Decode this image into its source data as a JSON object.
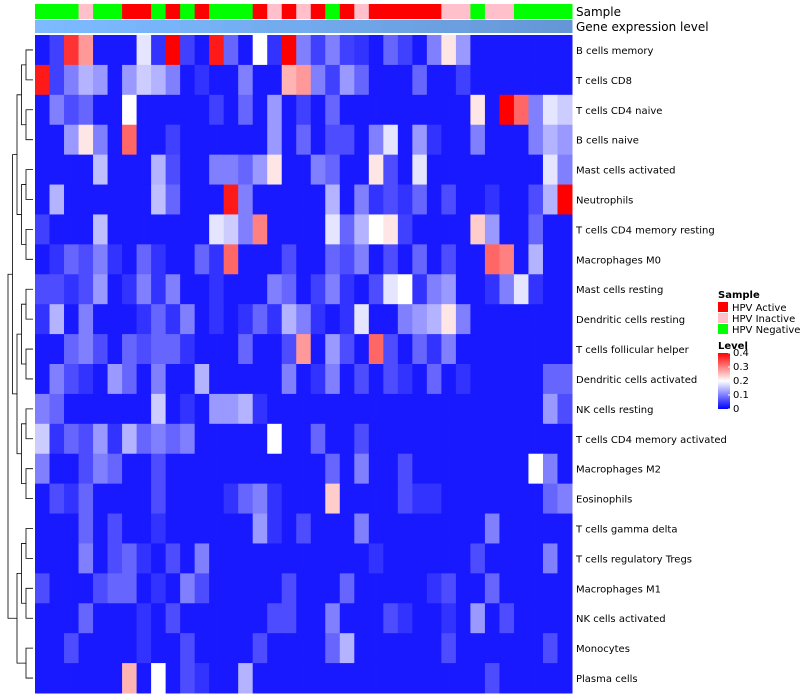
{
  "chart_data": {
    "type": "heatmap",
    "title": "",
    "annotation_tracks": [
      "Sample",
      "Gene expression level"
    ],
    "legends": [
      {
        "title": "Sample",
        "entries": [
          {
            "label": "HPV Active",
            "color": "#ff0000"
          },
          {
            "label": "HPV Inactive",
            "color": "#ffc0cb"
          },
          {
            "label": "HPV Negative",
            "color": "#00ff00"
          }
        ]
      },
      {
        "title": "Level",
        "ticks": [
          "0.4",
          "0.3",
          "0.2",
          "0.1",
          "0"
        ],
        "range": [
          0,
          0.4
        ],
        "gradient": [
          "#0000ff",
          "#ffffff",
          "#ff0000"
        ]
      }
    ],
    "sample_groups": [
      "neg",
      "neg",
      "neg",
      "ina",
      "neg",
      "neg",
      "act",
      "act",
      "neg",
      "act",
      "neg",
      "act",
      "neg",
      "neg",
      "neg",
      "act",
      "ina",
      "act",
      "ina",
      "act",
      "neg",
      "act",
      "ina",
      "act",
      "act",
      "act",
      "act",
      "act",
      "ina",
      "ina",
      "neg",
      "ina",
      "ina",
      "neg",
      "neg",
      "neg",
      "neg"
    ],
    "expression_level_track": [
      0.62,
      0.63,
      0.64,
      0.64,
      0.65,
      0.66,
      0.66,
      0.67,
      0.68,
      0.68,
      0.69,
      0.7,
      0.71,
      0.72,
      0.73,
      0.74,
      0.75,
      0.75,
      0.76,
      0.77,
      0.78,
      0.79,
      0.8,
      0.81,
      0.82,
      0.83,
      0.84,
      0.85,
      0.86,
      0.86,
      0.87,
      0.88,
      0.89,
      0.9,
      0.91,
      0.92,
      0.93
    ],
    "rows": [
      {
        "label": "B cells memory",
        "values": [
          0.02,
          0.05,
          0.36,
          0.28,
          0.02,
          0.02,
          0.02,
          0.18,
          0.04,
          0.4,
          0.05,
          0.02,
          0.38,
          0.08,
          0.02,
          0.2,
          0.04,
          0.4,
          0.1,
          0.05,
          0.1,
          0.05,
          0.04,
          0.02,
          0.08,
          0.05,
          0.02,
          0.1,
          0.22,
          0.12,
          0.02,
          0.02,
          0.02,
          0.02,
          0.02,
          0.02,
          0.02
        ]
      },
      {
        "label": "T cells CD8",
        "values": [
          0.38,
          0.05,
          0.1,
          0.14,
          0.12,
          0.02,
          0.12,
          0.16,
          0.14,
          0.1,
          0.02,
          0.04,
          0.02,
          0.02,
          0.1,
          0.02,
          0.02,
          0.26,
          0.28,
          0.1,
          0.05,
          0.12,
          0.08,
          0.02,
          0.02,
          0.02,
          0.08,
          0.02,
          0.02,
          0.05,
          0.02,
          0.02,
          0.02,
          0.02,
          0.02,
          0.02,
          0.02
        ]
      },
      {
        "label": "T cells CD4 naive",
        "values": [
          0.02,
          0.1,
          0.06,
          0.08,
          0.02,
          0.02,
          0.2,
          0.02,
          0.02,
          0.02,
          0.02,
          0.02,
          0.05,
          0.02,
          0.08,
          0.02,
          0.12,
          0.02,
          0.05,
          0.02,
          0.08,
          0.02,
          0.02,
          0.02,
          0.02,
          0.02,
          0.02,
          0.02,
          0.02,
          0.02,
          0.22,
          0.02,
          0.4,
          0.32,
          0.1,
          0.18,
          0.16
        ]
      },
      {
        "label": "B cells naive",
        "values": [
          0.02,
          0.02,
          0.12,
          0.22,
          0.1,
          0.02,
          0.32,
          0.02,
          0.02,
          0.05,
          0.02,
          0.02,
          0.02,
          0.02,
          0.02,
          0.02,
          0.12,
          0.02,
          0.08,
          0.02,
          0.06,
          0.06,
          0.02,
          0.1,
          0.18,
          0.02,
          0.12,
          0.04,
          0.02,
          0.02,
          0.1,
          0.02,
          0.02,
          0.02,
          0.1,
          0.14,
          0.12
        ]
      },
      {
        "label": "Mast cells activated",
        "values": [
          0.02,
          0.02,
          0.02,
          0.02,
          0.15,
          0.02,
          0.02,
          0.02,
          0.14,
          0.06,
          0.02,
          0.02,
          0.1,
          0.1,
          0.08,
          0.12,
          0.22,
          0.02,
          0.02,
          0.1,
          0.08,
          0.02,
          0.02,
          0.22,
          0.06,
          0.02,
          0.18,
          0.02,
          0.02,
          0.02,
          0.02,
          0.02,
          0.02,
          0.02,
          0.02,
          0.18,
          0.1
        ]
      },
      {
        "label": "Neutrophils",
        "values": [
          0.02,
          0.14,
          0.02,
          0.02,
          0.02,
          0.02,
          0.02,
          0.02,
          0.15,
          0.08,
          0.02,
          0.02,
          0.02,
          0.38,
          0.1,
          0.02,
          0.02,
          0.02,
          0.02,
          0.02,
          0.14,
          0.02,
          0.1,
          0.04,
          0.06,
          0.04,
          0.08,
          0.02,
          0.06,
          0.02,
          0.02,
          0.04,
          0.02,
          0.02,
          0.06,
          0.14,
          0.4
        ]
      },
      {
        "label": "T cells CD4 memory resting",
        "values": [
          0.05,
          0.02,
          0.02,
          0.02,
          0.15,
          0.02,
          0.02,
          0.02,
          0.02,
          0.02,
          0.02,
          0.02,
          0.18,
          0.16,
          0.1,
          0.3,
          0.02,
          0.02,
          0.02,
          0.02,
          0.18,
          0.08,
          0.14,
          0.2,
          0.22,
          0.05,
          0.02,
          0.02,
          0.02,
          0.02,
          0.24,
          0.12,
          0.02,
          0.02,
          0.08,
          0.02,
          0.02
        ]
      },
      {
        "label": "Macrophages M0",
        "values": [
          0.02,
          0.04,
          0.08,
          0.06,
          0.1,
          0.04,
          0.02,
          0.08,
          0.04,
          0.02,
          0.02,
          0.08,
          0.04,
          0.32,
          0.02,
          0.02,
          0.02,
          0.06,
          0.02,
          0.02,
          0.08,
          0.06,
          0.1,
          0.02,
          0.06,
          0.02,
          0.08,
          0.02,
          0.06,
          0.02,
          0.02,
          0.32,
          0.3,
          0.02,
          0.14,
          0.02,
          0.02
        ]
      },
      {
        "label": "Mast cells resting",
        "values": [
          0.06,
          0.06,
          0.04,
          0.06,
          0.12,
          0.02,
          0.04,
          0.1,
          0.04,
          0.1,
          0.02,
          0.02,
          0.04,
          0.02,
          0.02,
          0.02,
          0.1,
          0.08,
          0.02,
          0.05,
          0.1,
          0.04,
          0.02,
          0.06,
          0.18,
          0.2,
          0.04,
          0.1,
          0.12,
          0.02,
          0.02,
          0.04,
          0.1,
          0.18,
          0.04,
          0.02,
          0.02
        ]
      },
      {
        "label": "Dendritic cells resting",
        "values": [
          0.04,
          0.14,
          0.02,
          0.1,
          0.02,
          0.02,
          0.02,
          0.04,
          0.08,
          0.04,
          0.1,
          0.02,
          0.04,
          0.02,
          0.04,
          0.08,
          0.04,
          0.14,
          0.1,
          0.04,
          0.02,
          0.04,
          0.18,
          0.02,
          0.02,
          0.1,
          0.12,
          0.14,
          0.22,
          0.1,
          0.02,
          0.02,
          0.02,
          0.02,
          0.02,
          0.02,
          0.02
        ]
      },
      {
        "label": "T cells follicular helper",
        "values": [
          0.02,
          0.02,
          0.08,
          0.1,
          0.06,
          0.02,
          0.08,
          0.06,
          0.08,
          0.08,
          0.04,
          0.02,
          0.02,
          0.02,
          0.08,
          0.02,
          0.02,
          0.06,
          0.28,
          0.02,
          0.12,
          0.06,
          0.02,
          0.32,
          0.06,
          0.02,
          0.08,
          0.04,
          0.1,
          0.02,
          0.02,
          0.02,
          0.02,
          0.02,
          0.02,
          0.02,
          0.02
        ]
      },
      {
        "label": "Dendritic cells activated",
        "values": [
          0.02,
          0.1,
          0.06,
          0.04,
          0.02,
          0.12,
          0.08,
          0.02,
          0.1,
          0.02,
          0.02,
          0.14,
          0.02,
          0.02,
          0.02,
          0.02,
          0.02,
          0.1,
          0.02,
          0.04,
          0.1,
          0.02,
          0.06,
          0.02,
          0.06,
          0.04,
          0.02,
          0.08,
          0.02,
          0.04,
          0.02,
          0.02,
          0.02,
          0.02,
          0.02,
          0.08,
          0.08
        ]
      },
      {
        "label": "NK cells resting",
        "values": [
          0.1,
          0.08,
          0.02,
          0.02,
          0.02,
          0.02,
          0.02,
          0.02,
          0.16,
          0.02,
          0.04,
          0.02,
          0.12,
          0.12,
          0.14,
          0.04,
          0.02,
          0.02,
          0.02,
          0.02,
          0.02,
          0.02,
          0.02,
          0.02,
          0.02,
          0.02,
          0.02,
          0.02,
          0.02,
          0.02,
          0.02,
          0.02,
          0.02,
          0.02,
          0.02,
          0.12,
          0.06
        ]
      },
      {
        "label": "T cells CD4 memory activated",
        "values": [
          0.16,
          0.04,
          0.08,
          0.06,
          0.12,
          0.04,
          0.14,
          0.08,
          0.1,
          0.08,
          0.1,
          0.02,
          0.02,
          0.02,
          0.02,
          0.02,
          0.2,
          0.02,
          0.02,
          0.08,
          0.02,
          0.02,
          0.06,
          0.02,
          0.02,
          0.02,
          0.02,
          0.02,
          0.02,
          0.02,
          0.02,
          0.02,
          0.02,
          0.02,
          0.02,
          0.02,
          0.02
        ]
      },
      {
        "label": "Macrophages M2",
        "values": [
          0.1,
          0.02,
          0.02,
          0.06,
          0.1,
          0.08,
          0.02,
          0.02,
          0.06,
          0.02,
          0.02,
          0.02,
          0.02,
          0.02,
          0.02,
          0.02,
          0.02,
          0.02,
          0.02,
          0.02,
          0.08,
          0.02,
          0.1,
          0.02,
          0.02,
          0.06,
          0.02,
          0.02,
          0.02,
          0.02,
          0.02,
          0.02,
          0.02,
          0.02,
          0.2,
          0.1,
          0.02
        ]
      },
      {
        "label": "Eosinophils",
        "values": [
          0.02,
          0.06,
          0.04,
          0.08,
          0.02,
          0.02,
          0.02,
          0.02,
          0.06,
          0.02,
          0.02,
          0.02,
          0.02,
          0.04,
          0.08,
          0.1,
          0.04,
          0.02,
          0.02,
          0.02,
          0.24,
          0.02,
          0.02,
          0.02,
          0.02,
          0.06,
          0.04,
          0.04,
          0.02,
          0.02,
          0.02,
          0.02,
          0.02,
          0.02,
          0.02,
          0.08,
          0.1
        ]
      },
      {
        "label": "T cells gamma delta",
        "values": [
          0.02,
          0.02,
          0.02,
          0.08,
          0.02,
          0.06,
          0.02,
          0.02,
          0.04,
          0.02,
          0.02,
          0.02,
          0.02,
          0.02,
          0.02,
          0.12,
          0.04,
          0.02,
          0.06,
          0.02,
          0.02,
          0.02,
          0.1,
          0.02,
          0.02,
          0.02,
          0.02,
          0.02,
          0.02,
          0.02,
          0.02,
          0.1,
          0.02,
          0.02,
          0.02,
          0.02,
          0.02
        ]
      },
      {
        "label": "T cells regulatory  Tregs",
        "values": [
          0.02,
          0.02,
          0.02,
          0.1,
          0.02,
          0.06,
          0.08,
          0.04,
          0.02,
          0.06,
          0.02,
          0.1,
          0.02,
          0.02,
          0.02,
          0.02,
          0.02,
          0.02,
          0.02,
          0.02,
          0.02,
          0.02,
          0.02,
          0.04,
          0.02,
          0.02,
          0.02,
          0.02,
          0.02,
          0.02,
          0.06,
          0.02,
          0.02,
          0.02,
          0.02,
          0.1,
          0.02
        ]
      },
      {
        "label": "Macrophages M1",
        "values": [
          0.06,
          0.02,
          0.02,
          0.02,
          0.06,
          0.08,
          0.08,
          0.02,
          0.04,
          0.02,
          0.1,
          0.06,
          0.02,
          0.02,
          0.02,
          0.02,
          0.02,
          0.06,
          0.02,
          0.02,
          0.02,
          0.08,
          0.02,
          0.02,
          0.02,
          0.02,
          0.02,
          0.04,
          0.06,
          0.02,
          0.02,
          0.08,
          0.02,
          0.02,
          0.02,
          0.02,
          0.02
        ]
      },
      {
        "label": "NK cells activated",
        "values": [
          0.02,
          0.02,
          0.02,
          0.08,
          0.02,
          0.02,
          0.02,
          0.04,
          0.02,
          0.06,
          0.02,
          0.02,
          0.02,
          0.02,
          0.02,
          0.02,
          0.06,
          0.06,
          0.02,
          0.02,
          0.1,
          0.02,
          0.02,
          0.02,
          0.06,
          0.04,
          0.02,
          0.02,
          0.04,
          0.02,
          0.12,
          0.02,
          0.06,
          0.02,
          0.02,
          0.02,
          0.02
        ]
      },
      {
        "label": "Monocytes",
        "values": [
          0.02,
          0.02,
          0.06,
          0.02,
          0.02,
          0.02,
          0.02,
          0.04,
          0.02,
          0.02,
          0.06,
          0.02,
          0.02,
          0.02,
          0.02,
          0.06,
          0.02,
          0.02,
          0.02,
          0.02,
          0.08,
          0.14,
          0.02,
          0.02,
          0.02,
          0.02,
          0.02,
          0.02,
          0.06,
          0.02,
          0.02,
          0.02,
          0.02,
          0.02,
          0.02,
          0.06,
          0.02
        ]
      },
      {
        "label": "Plasma cells",
        "values": [
          0.02,
          0.02,
          0.02,
          0.02,
          0.02,
          0.02,
          0.26,
          0.02,
          0.2,
          0.02,
          0.06,
          0.04,
          0.02,
          0.02,
          0.14,
          0.02,
          0.02,
          0.02,
          0.02,
          0.02,
          0.02,
          0.02,
          0.02,
          0.02,
          0.02,
          0.02,
          0.02,
          0.02,
          0.02,
          0.02,
          0.02,
          0.06,
          0.02,
          0.02,
          0.02,
          0.02,
          0.02
        ]
      }
    ]
  }
}
